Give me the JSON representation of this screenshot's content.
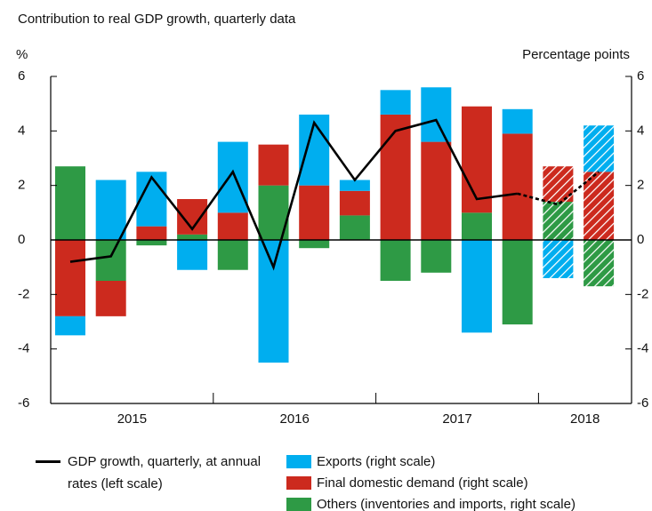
{
  "chart_data": {
    "type": "stacked-bar-line",
    "title": "Contribution to real GDP growth, quarterly data",
    "y_label": "%",
    "y2_label": "Percentage points",
    "year_labels": [
      "2015",
      "2016",
      "2017",
      "2018"
    ],
    "ylim": [
      -6,
      6
    ],
    "yticks": [
      -6,
      -4,
      -2,
      0,
      2,
      4,
      6
    ],
    "y2lim": [
      -6,
      6
    ],
    "y2ticks": [
      -6,
      -4,
      -2,
      0,
      2,
      4,
      6
    ],
    "forecast_start_index": 12,
    "series": [
      {
        "name": "Others (inventories and imports, right scale)",
        "color": "#2e9a45",
        "axis": "y2",
        "values": [
          2.7,
          -1.5,
          -0.2,
          0.2,
          -1.1,
          2.0,
          -0.3,
          0.9,
          -1.5,
          -1.2,
          1.0,
          -3.1,
          1.4,
          -1.7
        ]
      },
      {
        "name": "Final domestic demand (right scale)",
        "color": "#cc2a1e",
        "axis": "y2",
        "values": [
          -2.8,
          -1.3,
          0.5,
          1.3,
          1.0,
          1.5,
          2.0,
          0.9,
          4.6,
          3.6,
          3.9,
          3.9,
          1.3,
          2.5
        ]
      },
      {
        "name": "Exports (right scale)",
        "color": "#00aeef",
        "axis": "y2",
        "values": [
          -0.7,
          2.2,
          2.0,
          -1.1,
          2.6,
          -4.5,
          2.6,
          0.4,
          0.9,
          2.0,
          -3.4,
          0.9,
          -1.4,
          1.7
        ]
      },
      {
        "name": "GDP growth, quarterly, at annual rates (left scale)",
        "color": "#000000",
        "type": "line",
        "values": [
          -0.8,
          -0.6,
          2.3,
          0.4,
          2.5,
          -1.0,
          4.3,
          2.2,
          4.0,
          4.4,
          1.5,
          1.7,
          1.3,
          2.5
        ]
      }
    ]
  }
}
